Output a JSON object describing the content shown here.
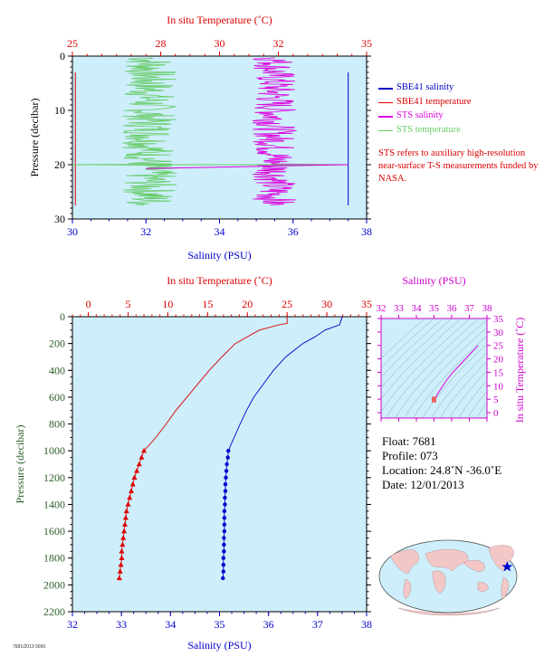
{
  "chart_data": [
    {
      "type": "line",
      "id": "top-profile",
      "top_axis_label": "In situ Temperature (˚C)",
      "top_ticks": [
        "25",
        "28",
        "30",
        "32",
        "35"
      ],
      "top_range": [
        25,
        35
      ],
      "bottom_axis_label": "Salinity (PSU)",
      "bottom_ticks": [
        "30",
        "32",
        "34",
        "36",
        "38"
      ],
      "bottom_range": [
        30,
        38
      ],
      "ylabel": "Pressure (decibar)",
      "y_ticks": [
        "0",
        "10",
        "20",
        "30"
      ],
      "y_range": [
        0,
        30
      ],
      "series": [
        {
          "name": "SBE41 salinity",
          "color": "#0000cc",
          "salinity": 37.5,
          "p_range": [
            3,
            27.5
          ]
        },
        {
          "name": "SBE41 temperature",
          "color": "#dd0000",
          "temperature": 25.1,
          "p_range": [
            3,
            27.5
          ]
        },
        {
          "name": "STS salinity",
          "color": "#dd00dd",
          "center_salinity": 35.5,
          "p_range": [
            0.3,
            27.5
          ],
          "spike_pressure": 20
        },
        {
          "name": "STS temperature",
          "color": "#66cc66",
          "center_salinity": 32.1,
          "p_range": [
            0.3,
            27.5
          ],
          "spike_pressure": 20
        }
      ],
      "note": "STS refers to auxiliary high-resolution near-surface T-S measurements funded by NASA."
    },
    {
      "type": "line",
      "id": "deep-profile",
      "top_axis_label": "In situ Temperature (˚C)",
      "top_ticks": [
        "0",
        "5",
        "10",
        "15",
        "20",
        "25",
        "30",
        "35"
      ],
      "top_range": [
        -2,
        35
      ],
      "bottom_axis_label": "Salinity (PSU)",
      "bottom_ticks": [
        "32",
        "33",
        "34",
        "35",
        "36",
        "37",
        "38"
      ],
      "bottom_range": [
        32,
        38
      ],
      "ylabel": "Pressure (decibar)",
      "y_ticks": [
        "0",
        "200",
        "400",
        "600",
        "800",
        "1000",
        "1200",
        "1400",
        "1600",
        "1800",
        "2000",
        "2200"
      ],
      "y_range": [
        0,
        2200
      ],
      "temperature": {
        "color": "#dd0000",
        "pressure": [
          5,
          50,
          60,
          100,
          200,
          300,
          400,
          500,
          600,
          700,
          800,
          900,
          1000,
          1050,
          1100,
          1150,
          1200,
          1250,
          1300,
          1350,
          1400,
          1450,
          1500,
          1550,
          1600,
          1650,
          1700,
          1750,
          1800,
          1850,
          1900,
          1950
        ],
        "temperature": [
          25.0,
          25.0,
          24.0,
          21.5,
          18.5,
          16.8,
          15.2,
          13.8,
          12.4,
          11.0,
          9.8,
          8.5,
          7.0,
          6.7,
          6.4,
          6.1,
          5.8,
          5.6,
          5.4,
          5.2,
          5.0,
          4.8,
          4.7,
          4.6,
          4.5,
          4.4,
          4.3,
          4.2,
          4.2,
          4.1,
          4.0,
          3.9
        ],
        "markers_from": 12
      },
      "salinity": {
        "color": "#0000cc",
        "pressure": [
          5,
          60,
          100,
          150,
          200,
          300,
          400,
          500,
          600,
          700,
          800,
          900,
          1000,
          1050,
          1100,
          1150,
          1200,
          1250,
          1300,
          1350,
          1400,
          1450,
          1500,
          1550,
          1600,
          1650,
          1700,
          1750,
          1800,
          1850,
          1900,
          1950
        ],
        "salinity": [
          37.5,
          37.45,
          37.15,
          36.95,
          36.7,
          36.35,
          36.1,
          35.9,
          35.7,
          35.55,
          35.42,
          35.3,
          35.18,
          35.17,
          35.15,
          35.14,
          35.13,
          35.12,
          35.12,
          35.11,
          35.11,
          35.1,
          35.1,
          35.1,
          35.1,
          35.09,
          35.09,
          35.09,
          35.08,
          35.08,
          35.08,
          35.07
        ],
        "markers_from": 12
      }
    },
    {
      "type": "scatter",
      "id": "ts-diagram",
      "top_axis_label": "Salinity (PSU)",
      "top_ticks": [
        "32",
        "33",
        "34",
        "35",
        "36",
        "37",
        "38"
      ],
      "x_range": [
        32,
        38
      ],
      "right_axis_label": "In situ Temperature (˚C)",
      "right_ticks": [
        "0",
        "5",
        "10",
        "15",
        "20",
        "25",
        "30",
        "35"
      ],
      "y_range": [
        -2,
        35
      ],
      "color": "#dd00dd",
      "salinity": [
        35.05,
        35.1,
        35.2,
        35.4,
        35.7,
        36.0,
        36.5,
        37.0,
        37.5
      ],
      "temperature": [
        3.9,
        5.5,
        7.0,
        9.0,
        12.0,
        14.5,
        18.0,
        21.5,
        25.0
      ]
    }
  ],
  "info": {
    "float": "Float:  7681",
    "profile": "Profile:  073",
    "location": "Location:  24.8˚N  -36.0˚E",
    "date": "Date:  12/01/2013"
  },
  "legend": [
    {
      "label": "SBE41 salinity",
      "color": "#0000cc"
    },
    {
      "label": "SBE41 temperature",
      "color": "#dd0000"
    },
    {
      "label": "STS salinity",
      "color": "#dd00dd"
    },
    {
      "label": "STS temperature",
      "color": "#66cc66"
    }
  ],
  "footer": "7681/2013 0000",
  "colors": {
    "panel_bg": "#cdeefa",
    "axis_temp": "#dd0000",
    "axis_sal": "#0000cc",
    "axis_p": "#2a5e2a",
    "axis_ts": "#cc00cc"
  }
}
